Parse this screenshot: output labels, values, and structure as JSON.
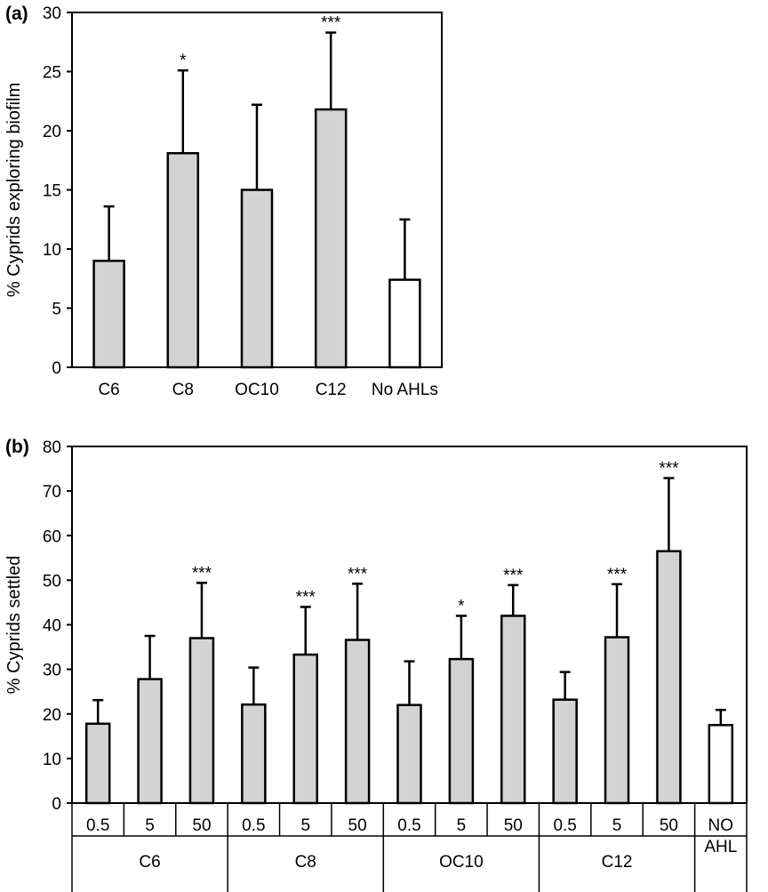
{
  "chart_data": [
    {
      "panel": "(a)",
      "type": "bar",
      "ylabel": "% Cyprids exploring biofilm",
      "ylim": [
        0,
        30
      ],
      "yticks": [
        0,
        5,
        10,
        15,
        20,
        25,
        30
      ],
      "categories": [
        "C6",
        "C8",
        "OC10",
        "C12",
        "No AHLs"
      ],
      "values": [
        9.0,
        18.1,
        15.0,
        21.8,
        7.4
      ],
      "errors": [
        4.6,
        7.0,
        7.2,
        6.5,
        5.1
      ],
      "significance": [
        "",
        "*",
        "",
        "***",
        ""
      ],
      "fill": [
        "#d3d3d3",
        "#d3d3d3",
        "#d3d3d3",
        "#d3d3d3",
        "#ffffff"
      ]
    },
    {
      "panel": "(b)",
      "type": "bar",
      "ylabel": "% Cyprids settled",
      "ylim": [
        0,
        80
      ],
      "yticks": [
        0,
        10,
        20,
        30,
        40,
        50,
        60,
        70,
        80
      ],
      "groups": [
        "C6",
        "C8",
        "OC10",
        "C12",
        "NO AHL"
      ],
      "categories": [
        "0.5",
        "5",
        "50",
        "0.5",
        "5",
        "50",
        "0.5",
        "5",
        "50",
        "0.5",
        "5",
        "50",
        ""
      ],
      "group_index": [
        0,
        0,
        0,
        1,
        1,
        1,
        2,
        2,
        2,
        3,
        3,
        3,
        4
      ],
      "values": [
        17.8,
        27.8,
        37.0,
        22.1,
        33.3,
        36.6,
        22.0,
        32.3,
        42.0,
        23.2,
        37.2,
        56.5,
        17.5
      ],
      "errors": [
        5.3,
        9.7,
        12.4,
        8.3,
        10.7,
        12.6,
        9.8,
        9.7,
        6.9,
        6.2,
        11.9,
        16.4,
        3.4
      ],
      "significance": [
        "",
        "",
        "***",
        "",
        "***",
        "***",
        "",
        "*",
        "***",
        "",
        "***",
        "***",
        ""
      ],
      "fill": [
        "#d3d3d3",
        "#d3d3d3",
        "#d3d3d3",
        "#d3d3d3",
        "#d3d3d3",
        "#d3d3d3",
        "#d3d3d3",
        "#d3d3d3",
        "#d3d3d3",
        "#d3d3d3",
        "#d3d3d3",
        "#d3d3d3",
        "#ffffff"
      ]
    }
  ]
}
